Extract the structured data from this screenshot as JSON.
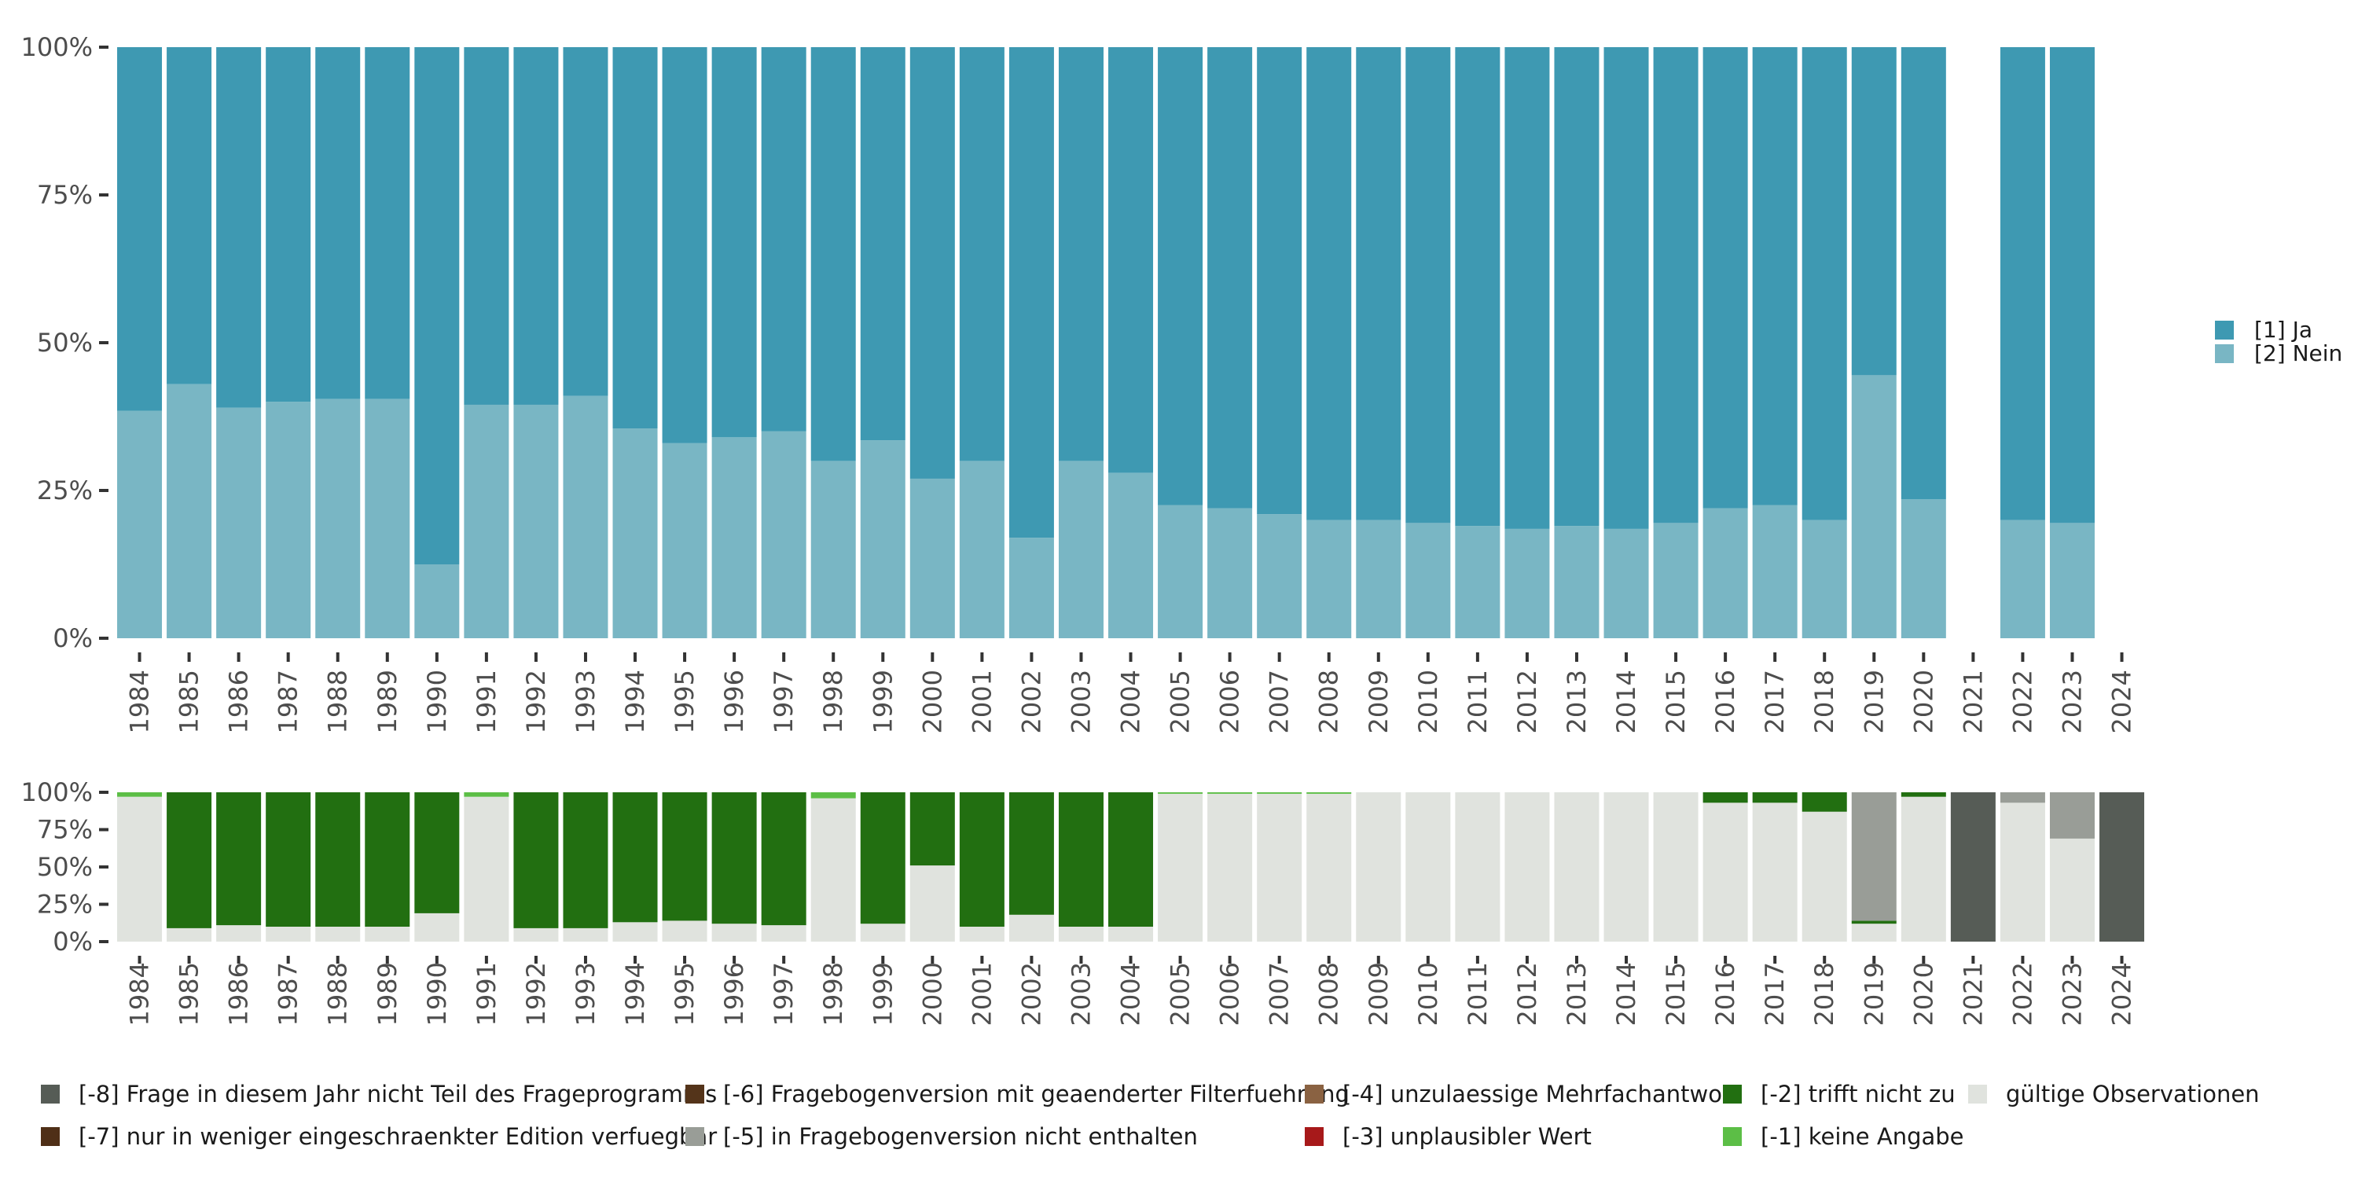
{
  "chart_data": [
    {
      "type": "bar",
      "stacked": true,
      "title": "",
      "xlabel": "",
      "ylabel": "",
      "ylim": [
        0,
        100
      ],
      "y_ticks": [
        "0%",
        "25%",
        "50%",
        "75%",
        "100%"
      ],
      "categories": [
        "1984",
        "1985",
        "1986",
        "1987",
        "1988",
        "1989",
        "1990",
        "1991",
        "1992",
        "1993",
        "1994",
        "1995",
        "1996",
        "1997",
        "1998",
        "1999",
        "2000",
        "2001",
        "2002",
        "2003",
        "2004",
        "2005",
        "2006",
        "2007",
        "2008",
        "2009",
        "2010",
        "2011",
        "2012",
        "2013",
        "2014",
        "2015",
        "2016",
        "2017",
        "2018",
        "2019",
        "2020",
        "2021",
        "2022",
        "2023",
        "2024"
      ],
      "series": [
        {
          "name": "[2] Nein",
          "color": "#79b6c4",
          "values": [
            38.5,
            43,
            39,
            40,
            40.5,
            40.5,
            12.5,
            39.5,
            39.5,
            41,
            35.5,
            33,
            34,
            35,
            30,
            33.5,
            27,
            30,
            17,
            30,
            28,
            22.5,
            22,
            21,
            20,
            20,
            19.5,
            19,
            18.5,
            19,
            18.5,
            19.5,
            22,
            22.5,
            20,
            44.5,
            23.5,
            null,
            20,
            19.5,
            null
          ]
        },
        {
          "name": "[1] Ja",
          "color": "#3e99b2",
          "values": [
            61.5,
            57,
            61,
            60,
            59.5,
            59.5,
            87.5,
            60.5,
            60.5,
            59,
            64.5,
            67,
            66,
            65,
            70,
            66.5,
            73,
            70,
            83,
            70,
            72,
            77.5,
            78,
            79,
            80,
            80,
            80.5,
            81,
            81.5,
            81,
            81.5,
            80.5,
            78,
            77.5,
            80,
            55.5,
            76.5,
            null,
            80,
            80.5,
            null
          ]
        }
      ],
      "legend": {
        "position": "right",
        "items": [
          {
            "label": "[1] Ja",
            "color": "#3e99b2"
          },
          {
            "label": "[2] Nein",
            "color": "#79b6c4"
          }
        ]
      }
    },
    {
      "type": "bar",
      "stacked": true,
      "title": "",
      "xlabel": "",
      "ylabel": "",
      "ylim": [
        0,
        100
      ],
      "y_ticks": [
        "0%",
        "25%",
        "50%",
        "75%",
        "100%"
      ],
      "categories": [
        "1984",
        "1985",
        "1986",
        "1987",
        "1988",
        "1989",
        "1990",
        "1991",
        "1992",
        "1993",
        "1994",
        "1995",
        "1996",
        "1997",
        "1998",
        "1999",
        "2000",
        "2001",
        "2002",
        "2003",
        "2004",
        "2005",
        "2006",
        "2007",
        "2008",
        "2009",
        "2010",
        "2011",
        "2012",
        "2013",
        "2014",
        "2015",
        "2016",
        "2017",
        "2018",
        "2019",
        "2020",
        "2021",
        "2022",
        "2023",
        "2024"
      ],
      "series": [
        {
          "name": "gültige Observationen",
          "color": "#e0e3de",
          "values": [
            97,
            9,
            11,
            10,
            10,
            10,
            19,
            97,
            9,
            9,
            13,
            14,
            12,
            11,
            96,
            12,
            51,
            10,
            18,
            10,
            10,
            99,
            99,
            99,
            99,
            100,
            100,
            100,
            100,
            100,
            100,
            100,
            93,
            93,
            87,
            12,
            97,
            0,
            93,
            69,
            0
          ]
        },
        {
          "name": "[-1] keine Angabe",
          "color": "#5cbe46",
          "values": [
            3,
            0,
            0,
            0,
            0,
            0,
            0,
            3,
            0,
            0,
            0,
            0,
            0,
            0,
            4,
            0,
            0,
            0,
            0,
            0,
            0,
            1,
            1,
            1,
            1,
            0,
            0,
            0,
            0,
            0,
            0,
            0,
            0,
            0,
            0,
            0,
            0,
            0,
            0,
            0,
            0
          ]
        },
        {
          "name": "[-2] trifft nicht zu",
          "color": "#226f11",
          "values": [
            0,
            91,
            89,
            90,
            90,
            90,
            81,
            0,
            91,
            91,
            87,
            86,
            88,
            89,
            0,
            88,
            49,
            90,
            82,
            90,
            90,
            0,
            0,
            0,
            0,
            0,
            0,
            0,
            0,
            0,
            0,
            0,
            7,
            7,
            13,
            2,
            3,
            0,
            0,
            0,
            0
          ]
        },
        {
          "name": "[-3] unplausibler Wert",
          "color": "#a7191a",
          "values": [
            0,
            0,
            0,
            0,
            0,
            0,
            0,
            0,
            0,
            0,
            0,
            0,
            0,
            0,
            0,
            0,
            0,
            0,
            0,
            0,
            0,
            0,
            0,
            0,
            0,
            0,
            0,
            0,
            0,
            0,
            0,
            0,
            0,
            0,
            0,
            0,
            0,
            0,
            0,
            0,
            0
          ]
        },
        {
          "name": "[-4] unzulaessige Mehrfachantwort",
          "color": "#8a6242",
          "values": [
            0,
            0,
            0,
            0,
            0,
            0,
            0,
            0,
            0,
            0,
            0,
            0,
            0,
            0,
            0,
            0,
            0,
            0,
            0,
            0,
            0,
            0,
            0,
            0,
            0,
            0,
            0,
            0,
            0,
            0,
            0,
            0,
            0,
            0,
            0,
            0,
            0,
            0,
            0,
            0,
            0
          ]
        },
        {
          "name": "[-5] in Fragebogenversion nicht enthalten",
          "color": "#999d97",
          "values": [
            0,
            0,
            0,
            0,
            0,
            0,
            0,
            0,
            0,
            0,
            0,
            0,
            0,
            0,
            0,
            0,
            0,
            0,
            0,
            0,
            0,
            0,
            0,
            0,
            0,
            0,
            0,
            0,
            0,
            0,
            0,
            0,
            0,
            0,
            0,
            86,
            0,
            0,
            7,
            31,
            0
          ]
        },
        {
          "name": "[-6] Fragebogenversion mit geaenderter Filterfuehrung",
          "color": "#54341a",
          "values": [
            0,
            0,
            0,
            0,
            0,
            0,
            0,
            0,
            0,
            0,
            0,
            0,
            0,
            0,
            0,
            0,
            0,
            0,
            0,
            0,
            0,
            0,
            0,
            0,
            0,
            0,
            0,
            0,
            0,
            0,
            0,
            0,
            0,
            0,
            0,
            0,
            0,
            0,
            0,
            0,
            0
          ]
        },
        {
          "name": "[-7] nur in weniger eingeschraenkter Edition verfuegbar",
          "color": "#4f2f17",
          "values": [
            0,
            0,
            0,
            0,
            0,
            0,
            0,
            0,
            0,
            0,
            0,
            0,
            0,
            0,
            0,
            0,
            0,
            0,
            0,
            0,
            0,
            0,
            0,
            0,
            0,
            0,
            0,
            0,
            0,
            0,
            0,
            0,
            0,
            0,
            0,
            0,
            0,
            0,
            0,
            0,
            0
          ]
        },
        {
          "name": "[-8] Frage in diesem Jahr nicht Teil des Frageprogramms",
          "color": "#565c56",
          "values": [
            0,
            0,
            0,
            0,
            0,
            0,
            0,
            0,
            0,
            0,
            0,
            0,
            0,
            0,
            0,
            0,
            0,
            0,
            0,
            0,
            0,
            0,
            0,
            0,
            0,
            0,
            0,
            0,
            0,
            0,
            0,
            0,
            0,
            0,
            0,
            0,
            0,
            100,
            0,
            0,
            100
          ]
        }
      ],
      "legend": {
        "position": "bottom",
        "items": [
          {
            "label": "[-8] Frage in diesem Jahr nicht Teil des Frageprogramms",
            "color": "#565c56"
          },
          {
            "label": "[-7] nur in weniger eingeschraenkter Edition verfuegbar",
            "color": "#4f2f17"
          },
          {
            "label": "[-6] Fragebogenversion mit geaenderter Filterfuehrung",
            "color": "#54341a"
          },
          {
            "label": "[-5] in Fragebogenversion nicht enthalten",
            "color": "#999d97"
          },
          {
            "label": "[-4] unzulaessige Mehrfachantwort",
            "color": "#8a6242"
          },
          {
            "label": "[-3] unplausibler Wert",
            "color": "#a7191a"
          },
          {
            "label": "[-2] trifft nicht zu",
            "color": "#226f11"
          },
          {
            "label": "[-1] keine Angabe",
            "color": "#5cbe46"
          },
          {
            "label": "gültige Observationen",
            "color": "#e0e3de"
          }
        ]
      }
    }
  ]
}
